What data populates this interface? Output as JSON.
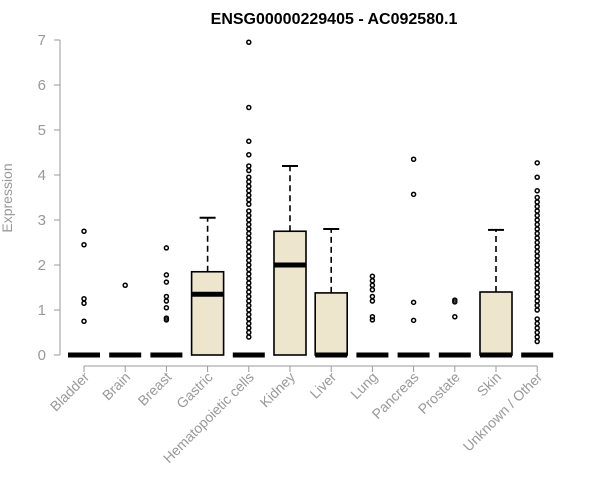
{
  "chart_data": {
    "type": "boxplot",
    "title": "ENSG00000229405 - AC092580.1",
    "ylabel": "Expression",
    "xlabel": "",
    "ylim": [
      0,
      7
    ],
    "yticks": [
      0,
      1,
      2,
      3,
      4,
      5,
      6,
      7
    ],
    "colors": {
      "box_fill": "#ede6cc",
      "stroke": "#000000",
      "axis": "#999999"
    },
    "categories": [
      "Bladder",
      "Brain",
      "Breast",
      "Gastric",
      "Hematopoietic cells",
      "Kidney",
      "Liver",
      "Lung",
      "Pancreas",
      "Prostate",
      "Skin",
      "Unknown / Other"
    ],
    "boxes": [
      {
        "category": "Bladder",
        "q1": 0,
        "median": 0,
        "q3": 0,
        "whisker_low": 0,
        "whisker_high": 0,
        "outliers": [
          2.75,
          2.45,
          1.25,
          1.15,
          0.75
        ]
      },
      {
        "category": "Brain",
        "q1": 0,
        "median": 0,
        "q3": 0,
        "whisker_low": 0,
        "whisker_high": 0,
        "outliers": [
          1.55
        ]
      },
      {
        "category": "Breast",
        "q1": 0,
        "median": 0,
        "q3": 0,
        "whisker_low": 0,
        "whisker_high": 0,
        "outliers": [
          2.38,
          1.78,
          1.62,
          1.3,
          1.2,
          1.05,
          0.82,
          0.78
        ]
      },
      {
        "category": "Gastric",
        "q1": 0,
        "median": 1.35,
        "q3": 1.85,
        "whisker_low": 0,
        "whisker_high": 3.05,
        "outliers": []
      },
      {
        "category": "Hematopoietic cells",
        "q1": 0,
        "median": 0,
        "q3": 0,
        "whisker_low": 0,
        "whisker_high": 0,
        "outliers": [
          6.95,
          5.5,
          4.75,
          4.45,
          4.2,
          4.1,
          3.95,
          3.85,
          3.75,
          3.65,
          3.55,
          3.45,
          3.35,
          3.2,
          3.1,
          3.0,
          2.9,
          2.8,
          2.7,
          2.6,
          2.5,
          2.4,
          2.3,
          2.2,
          2.1,
          2.0,
          1.9,
          1.8,
          1.7,
          1.6,
          1.5,
          1.4,
          1.3,
          1.2,
          1.1,
          1.0,
          0.9,
          0.8,
          0.7,
          0.6,
          0.5,
          0.4
        ]
      },
      {
        "category": "Kidney",
        "q1": 0,
        "median": 2.0,
        "q3": 2.75,
        "whisker_low": 0,
        "whisker_high": 4.2,
        "outliers": []
      },
      {
        "category": "Liver",
        "q1": 0,
        "median": 0,
        "q3": 1.38,
        "whisker_low": 0,
        "whisker_high": 2.8,
        "outliers": []
      },
      {
        "category": "Lung",
        "q1": 0,
        "median": 0,
        "q3": 0,
        "whisker_low": 0,
        "whisker_high": 0,
        "outliers": [
          1.75,
          1.65,
          1.55,
          1.45,
          1.3,
          1.2,
          0.85,
          0.78
        ]
      },
      {
        "category": "Pancreas",
        "q1": 0,
        "median": 0,
        "q3": 0,
        "whisker_low": 0,
        "whisker_high": 0,
        "outliers": [
          4.35,
          3.57,
          1.17,
          0.77
        ]
      },
      {
        "category": "Prostate",
        "q1": 0,
        "median": 0,
        "q3": 0,
        "whisker_low": 0,
        "whisker_high": 0,
        "outliers": [
          1.22,
          1.18,
          0.85
        ]
      },
      {
        "category": "Skin",
        "q1": 0,
        "median": 0,
        "q3": 1.4,
        "whisker_low": 0,
        "whisker_high": 2.78,
        "outliers": []
      },
      {
        "category": "Unknown / Other",
        "q1": 0,
        "median": 0,
        "q3": 0,
        "whisker_low": 0,
        "whisker_high": 0,
        "outliers": [
          4.27,
          3.95,
          3.65,
          3.5,
          3.4,
          3.3,
          3.2,
          3.1,
          3.0,
          2.9,
          2.8,
          2.7,
          2.6,
          2.5,
          2.4,
          2.3,
          2.2,
          2.1,
          2.0,
          1.9,
          1.8,
          1.7,
          1.6,
          1.5,
          1.4,
          1.3,
          1.2,
          1.1,
          1.0,
          0.8,
          0.7,
          0.6,
          0.5,
          0.4,
          0.3
        ]
      }
    ]
  }
}
